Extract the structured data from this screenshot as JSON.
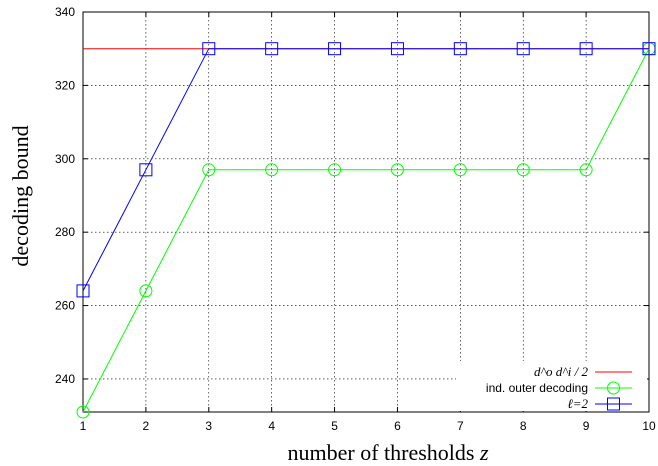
{
  "chart_data": {
    "type": "line",
    "xlabel": "number of thresholds z",
    "ylabel": "decoding bound",
    "xlim": [
      1,
      10
    ],
    "ylim": [
      231,
      340
    ],
    "x_ticks": [
      "1",
      "2",
      "3",
      "4",
      "5",
      "6",
      "7",
      "8",
      "9",
      "10"
    ],
    "y_ticks": [
      "240",
      "260",
      "280",
      "300",
      "320",
      "340"
    ],
    "grid": true,
    "legend_position": "bottom-right",
    "series": [
      {
        "name": "d^o d^i / 2",
        "color": "#ff0000",
        "marker": "none",
        "x": [
          1,
          10
        ],
        "y": [
          330,
          330
        ]
      },
      {
        "name": "ind. outer decoding",
        "color": "#00ff00",
        "marker": "circle",
        "x": [
          1,
          2,
          3,
          4,
          5,
          6,
          7,
          8,
          9,
          10
        ],
        "y": [
          231,
          264,
          297,
          297,
          297,
          297,
          297,
          297,
          297,
          330
        ]
      },
      {
        "name": "ℓ=2",
        "color": "#0000ff",
        "marker": "square",
        "x": [
          1,
          2,
          3,
          4,
          5,
          6,
          7,
          8,
          9,
          10
        ],
        "y": [
          264,
          297,
          330,
          330,
          330,
          330,
          330,
          330,
          330,
          330
        ]
      }
    ]
  }
}
